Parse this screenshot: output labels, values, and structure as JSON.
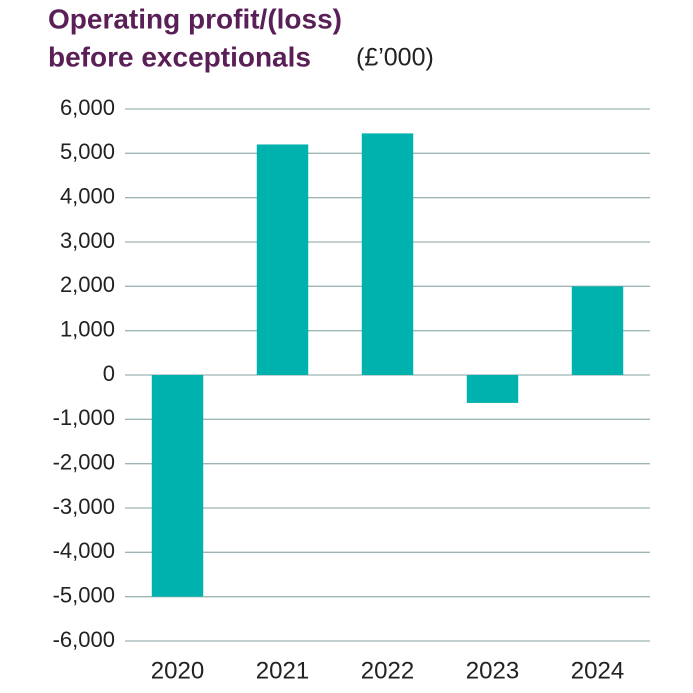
{
  "chart_data": {
    "type": "bar",
    "title": [
      "Operating profit/(loss)",
      "before exceptionals"
    ],
    "unit": "(£’000)",
    "categories": [
      "2020",
      "2021",
      "2022",
      "2023",
      "2024"
    ],
    "values": [
      -5000,
      5200,
      5450,
      -630,
      2000
    ],
    "color": "#00b2ad",
    "ylim": [
      -6000,
      6000
    ],
    "yticks": [
      {
        "value": -6000,
        "label": "-6,000"
      },
      {
        "value": -5000,
        "label": "-5,000"
      },
      {
        "value": -4000,
        "label": "-4,000"
      },
      {
        "value": -3000,
        "label": "-3,000"
      },
      {
        "value": -2000,
        "label": "-2,000"
      },
      {
        "value": -1000,
        "label": "-1,000"
      },
      0,
      {
        "value": 1000,
        "label": "1,000"
      },
      {
        "value": 2000,
        "label": "2,000"
      },
      {
        "value": 3000,
        "label": "3,000"
      },
      {
        "value": 4000,
        "label": "4,000"
      },
      {
        "value": 5000,
        "label": "5,000"
      },
      {
        "value": 6000,
        "label": "6,000"
      }
    ],
    "grid": true
  }
}
